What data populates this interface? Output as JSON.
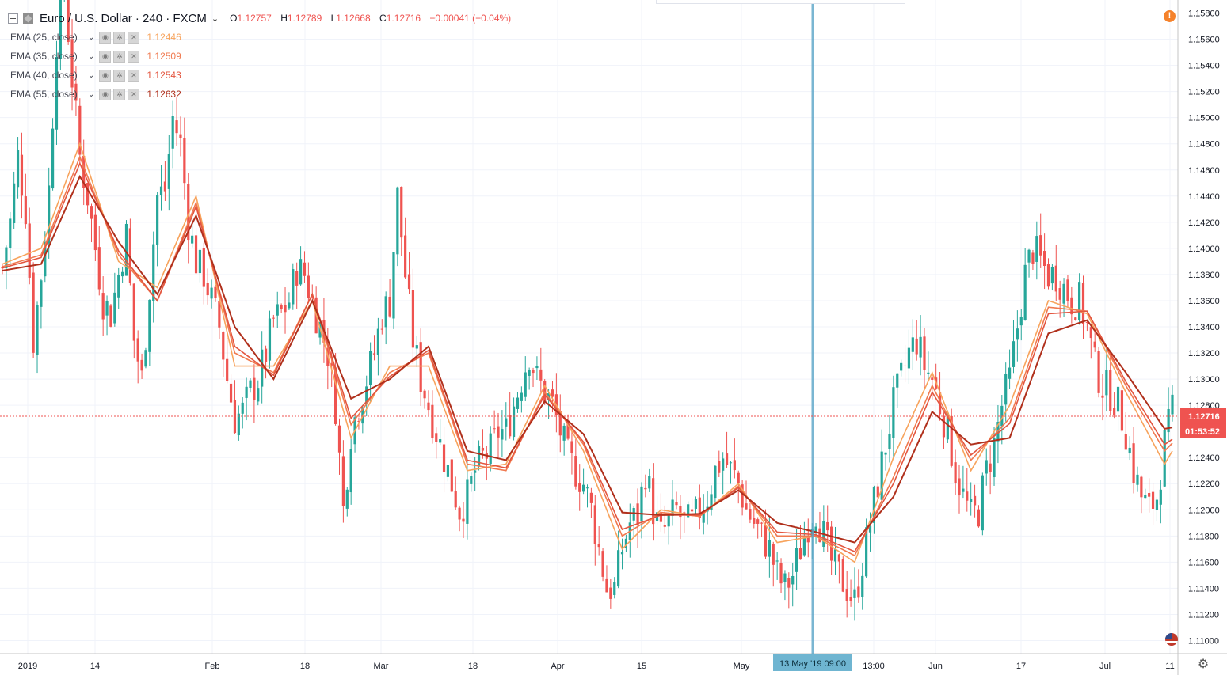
{
  "header": {
    "title": "Euro / U.S. Dollar · 240 · FXCM",
    "chevron": "⌄",
    "ohlc": [
      {
        "k": "O",
        "v": "1.12757"
      },
      {
        "k": "H",
        "v": "1.12789"
      },
      {
        "k": "L",
        "v": "1.12668"
      },
      {
        "k": "C",
        "v": "1.12716"
      }
    ],
    "change": "−0.00041 (−0.04%)"
  },
  "indicators": [
    {
      "name": "EMA (25, close)",
      "value": "1.12446",
      "color": "#f7a35c"
    },
    {
      "name": "EMA (35, close)",
      "value": "1.12509",
      "color": "#f0794f"
    },
    {
      "name": "EMA (40, close)",
      "value": "1.12543",
      "color": "#e3553f"
    },
    {
      "name": "EMA (55, close)",
      "value": "1.12632",
      "color": "#b0301c"
    }
  ],
  "indicator_buttons": {
    "eye": "◉",
    "settings": "✲",
    "remove": "✕"
  },
  "alert_icon": "!",
  "settings_icon": "⚙",
  "colors": {
    "up": "#26a69a",
    "down": "#ef5350",
    "grid": "#f0f3fa",
    "price_line": "#ef5350",
    "crosshair": "#5aa5c8",
    "crosshair_label_bg": "#6fb5d1"
  },
  "chart_data": {
    "type": "candlestick",
    "symbol": "Euro / U.S. Dollar",
    "interval": "240",
    "source": "FXCM",
    "ylim": [
      1.109,
      1.159
    ],
    "y_ticks": [
      "1.15800",
      "1.15600",
      "1.15400",
      "1.15200",
      "1.15000",
      "1.14800",
      "1.14600",
      "1.14400",
      "1.14200",
      "1.14000",
      "1.13800",
      "1.13600",
      "1.13400",
      "1.13200",
      "1.13000",
      "1.12800",
      "1.12400",
      "1.12200",
      "1.12000",
      "1.11800",
      "1.11600",
      "1.11400",
      "1.11200",
      "1.11000"
    ],
    "x_ticks": [
      "2019",
      "14",
      "Feb",
      "18",
      "Mar",
      "18",
      "Apr",
      "15",
      "May",
      "13:00",
      "Jun",
      "17",
      "Jul",
      "11"
    ],
    "last_price": "1.12716",
    "countdown": "01:53:52",
    "crosshair_label": "13 May '19   09:00",
    "price_path": [
      [
        0,
        1.1385
      ],
      [
        2,
        1.142
      ],
      [
        4,
        1.147
      ],
      [
        6,
        1.143
      ],
      [
        8,
        1.133
      ],
      [
        10,
        1.138
      ],
      [
        12,
        1.1445
      ],
      [
        14,
        1.156
      ],
      [
        16,
        1.16
      ],
      [
        18,
        1.153
      ],
      [
        20,
        1.147
      ],
      [
        22,
        1.144
      ],
      [
        24,
        1.14
      ],
      [
        26,
        1.136
      ],
      [
        28,
        1.135
      ],
      [
        30,
        1.138
      ],
      [
        32,
        1.141
      ],
      [
        34,
        1.133
      ],
      [
        36,
        1.13
      ],
      [
        38,
        1.137
      ],
      [
        40,
        1.144
      ],
      [
        42,
        1.1445
      ],
      [
        44,
        1.15
      ],
      [
        46,
        1.148
      ],
      [
        48,
        1.142
      ],
      [
        50,
        1.139
      ],
      [
        52,
        1.138
      ],
      [
        54,
        1.136
      ],
      [
        56,
        1.134
      ],
      [
        58,
        1.13
      ],
      [
        60,
        1.127
      ],
      [
        62,
        1.1275
      ],
      [
        64,
        1.129
      ],
      [
        66,
        1.13
      ],
      [
        68,
        1.132
      ],
      [
        70,
        1.1345
      ],
      [
        72,
        1.135
      ],
      [
        74,
        1.136
      ],
      [
        76,
        1.1385
      ],
      [
        78,
        1.138
      ],
      [
        80,
        1.136
      ],
      [
        82,
        1.134
      ],
      [
        84,
        1.132
      ],
      [
        86,
        1.128
      ],
      [
        88,
        1.12
      ],
      [
        90,
        1.126
      ],
      [
        92,
        1.128
      ],
      [
        94,
        1.13
      ],
      [
        96,
        1.132
      ],
      [
        98,
        1.135
      ],
      [
        100,
        1.136
      ],
      [
        102,
        1.144
      ],
      [
        104,
        1.138
      ],
      [
        106,
        1.133
      ],
      [
        108,
        1.13
      ],
      [
        110,
        1.128
      ],
      [
        112,
        1.126
      ],
      [
        114,
        1.124
      ],
      [
        116,
        1.122
      ],
      [
        118,
        1.12
      ],
      [
        120,
        1.121
      ],
      [
        122,
        1.123
      ],
      [
        124,
        1.124
      ],
      [
        126,
        1.1245
      ],
      [
        128,
        1.126
      ],
      [
        130,
        1.126
      ],
      [
        132,
        1.128
      ],
      [
        134,
        1.13
      ],
      [
        136,
        1.132
      ],
      [
        138,
        1.13
      ],
      [
        140,
        1.129
      ],
      [
        142,
        1.128
      ],
      [
        144,
        1.126
      ],
      [
        146,
        1.124
      ],
      [
        148,
        1.123
      ],
      [
        150,
        1.122
      ],
      [
        152,
        1.12
      ],
      [
        154,
        1.117
      ],
      [
        156,
        1.114
      ],
      [
        158,
        1.114
      ],
      [
        160,
        1.117
      ],
      [
        162,
        1.119
      ],
      [
        164,
        1.1195
      ],
      [
        166,
        1.123
      ],
      [
        168,
        1.12
      ],
      [
        170,
        1.118
      ],
      [
        172,
        1.119
      ],
      [
        174,
        1.12
      ],
      [
        176,
        1.119
      ],
      [
        178,
        1.119
      ],
      [
        180,
        1.12
      ],
      [
        182,
        1.121
      ],
      [
        184,
        1.123
      ],
      [
        186,
        1.124
      ],
      [
        188,
        1.123
      ],
      [
        190,
        1.122
      ],
      [
        192,
        1.12
      ],
      [
        194,
        1.119
      ],
      [
        196,
        1.118
      ],
      [
        198,
        1.117
      ],
      [
        200,
        1.115
      ],
      [
        202,
        1.114
      ],
      [
        204,
        1.115
      ],
      [
        206,
        1.117
      ],
      [
        208,
        1.119
      ],
      [
        210,
        1.12
      ],
      [
        212,
        1.118
      ],
      [
        214,
        1.116
      ],
      [
        216,
        1.115
      ],
      [
        218,
        1.114
      ],
      [
        220,
        1.113
      ],
      [
        222,
        1.116
      ],
      [
        224,
        1.119
      ],
      [
        226,
        1.122
      ],
      [
        228,
        1.125
      ],
      [
        230,
        1.128
      ],
      [
        232,
        1.13
      ],
      [
        234,
        1.132
      ],
      [
        236,
        1.133
      ],
      [
        238,
        1.131
      ],
      [
        240,
        1.13
      ],
      [
        242,
        1.128
      ],
      [
        244,
        1.126
      ],
      [
        246,
        1.123
      ],
      [
        248,
        1.121
      ],
      [
        250,
        1.1195
      ],
      [
        252,
        1.12
      ],
      [
        254,
        1.123
      ],
      [
        256,
        1.125
      ],
      [
        258,
        1.128
      ],
      [
        260,
        1.13
      ],
      [
        262,
        1.134
      ],
      [
        264,
        1.138
      ],
      [
        266,
        1.14
      ],
      [
        268,
        1.139
      ],
      [
        270,
        1.138
      ],
      [
        272,
        1.138
      ],
      [
        274,
        1.137
      ],
      [
        276,
        1.136
      ],
      [
        278,
        1.136
      ],
      [
        280,
        1.134
      ],
      [
        282,
        1.131
      ],
      [
        284,
        1.1295
      ],
      [
        286,
        1.129
      ],
      [
        288,
        1.128
      ],
      [
        290,
        1.126
      ],
      [
        292,
        1.123
      ],
      [
        294,
        1.121
      ],
      [
        296,
        1.12
      ],
      [
        298,
        1.121
      ],
      [
        300,
        1.125
      ],
      [
        302,
        1.1275
      ]
    ],
    "ema": [
      {
        "name": "EMA (25, close)",
        "last": 1.12446,
        "path": [
          [
            0,
            1.1388
          ],
          [
            10,
            1.14
          ],
          [
            20,
            1.148
          ],
          [
            30,
            1.139
          ],
          [
            40,
            1.137
          ],
          [
            50,
            1.144
          ],
          [
            60,
            1.131
          ],
          [
            70,
            1.131
          ],
          [
            80,
            1.136
          ],
          [
            90,
            1.1255
          ],
          [
            100,
            1.131
          ],
          [
            110,
            1.131
          ],
          [
            120,
            1.123
          ],
          [
            130,
            1.1235
          ],
          [
            140,
            1.1295
          ],
          [
            150,
            1.1245
          ],
          [
            160,
            1.117
          ],
          [
            170,
            1.12
          ],
          [
            180,
            1.1195
          ],
          [
            190,
            1.122
          ],
          [
            200,
            1.1175
          ],
          [
            210,
            1.118
          ],
          [
            220,
            1.116
          ],
          [
            230,
            1.124
          ],
          [
            240,
            1.1305
          ],
          [
            250,
            1.123
          ],
          [
            260,
            1.128
          ],
          [
            270,
            1.136
          ],
          [
            280,
            1.135
          ],
          [
            290,
            1.129
          ],
          [
            300,
            1.1235
          ],
          [
            302,
            1.1245
          ]
        ]
      },
      {
        "name": "EMA (35, close)",
        "last": 1.12509,
        "path": [
          [
            0,
            1.1386
          ],
          [
            10,
            1.1395
          ],
          [
            20,
            1.147
          ],
          [
            30,
            1.1395
          ],
          [
            40,
            1.136
          ],
          [
            50,
            1.1435
          ],
          [
            60,
            1.132
          ],
          [
            70,
            1.1305
          ],
          [
            80,
            1.1365
          ],
          [
            90,
            1.1265
          ],
          [
            100,
            1.1305
          ],
          [
            110,
            1.132
          ],
          [
            120,
            1.1235
          ],
          [
            130,
            1.123
          ],
          [
            140,
            1.129
          ],
          [
            150,
            1.125
          ],
          [
            160,
            1.118
          ],
          [
            170,
            1.1198
          ],
          [
            180,
            1.1195
          ],
          [
            190,
            1.1218
          ],
          [
            200,
            1.118
          ],
          [
            210,
            1.118
          ],
          [
            220,
            1.1165
          ],
          [
            230,
            1.1225
          ],
          [
            240,
            1.1295
          ],
          [
            250,
            1.1238
          ],
          [
            260,
            1.127
          ],
          [
            270,
            1.1355
          ],
          [
            280,
            1.1352
          ],
          [
            290,
            1.1295
          ],
          [
            300,
            1.1245
          ],
          [
            302,
            1.1251
          ]
        ]
      },
      {
        "name": "EMA (40, close)",
        "last": 1.12543,
        "path": [
          [
            0,
            1.1385
          ],
          [
            10,
            1.1393
          ],
          [
            20,
            1.1465
          ],
          [
            30,
            1.1398
          ],
          [
            40,
            1.136
          ],
          [
            50,
            1.1432
          ],
          [
            60,
            1.1325
          ],
          [
            70,
            1.1303
          ],
          [
            80,
            1.1365
          ],
          [
            90,
            1.127
          ],
          [
            100,
            1.1302
          ],
          [
            110,
            1.1322
          ],
          [
            120,
            1.1238
          ],
          [
            130,
            1.1232
          ],
          [
            140,
            1.1288
          ],
          [
            150,
            1.1252
          ],
          [
            160,
            1.1185
          ],
          [
            170,
            1.1196
          ],
          [
            180,
            1.1196
          ],
          [
            190,
            1.1217
          ],
          [
            200,
            1.1183
          ],
          [
            210,
            1.1181
          ],
          [
            220,
            1.1168
          ],
          [
            230,
            1.122
          ],
          [
            240,
            1.129
          ],
          [
            250,
            1.1242
          ],
          [
            260,
            1.1266
          ],
          [
            270,
            1.135
          ],
          [
            280,
            1.1352
          ],
          [
            290,
            1.1298
          ],
          [
            300,
            1.125
          ],
          [
            302,
            1.1254
          ]
        ]
      },
      {
        "name": "EMA (55, close)",
        "last": 1.12632,
        "path": [
          [
            0,
            1.1383
          ],
          [
            10,
            1.1388
          ],
          [
            20,
            1.1455
          ],
          [
            30,
            1.1405
          ],
          [
            40,
            1.1365
          ],
          [
            50,
            1.1425
          ],
          [
            60,
            1.134
          ],
          [
            70,
            1.13
          ],
          [
            80,
            1.136
          ],
          [
            90,
            1.1285
          ],
          [
            100,
            1.13
          ],
          [
            110,
            1.1325
          ],
          [
            120,
            1.1245
          ],
          [
            130,
            1.1238
          ],
          [
            140,
            1.1283
          ],
          [
            150,
            1.1258
          ],
          [
            160,
            1.1198
          ],
          [
            170,
            1.1196
          ],
          [
            180,
            1.1197
          ],
          [
            190,
            1.1215
          ],
          [
            200,
            1.119
          ],
          [
            210,
            1.1183
          ],
          [
            220,
            1.1175
          ],
          [
            230,
            1.121
          ],
          [
            240,
            1.1275
          ],
          [
            250,
            1.125
          ],
          [
            260,
            1.1255
          ],
          [
            270,
            1.1335
          ],
          [
            280,
            1.1345
          ],
          [
            290,
            1.1305
          ],
          [
            300,
            1.1262
          ],
          [
            302,
            1.1263
          ]
        ]
      }
    ]
  }
}
